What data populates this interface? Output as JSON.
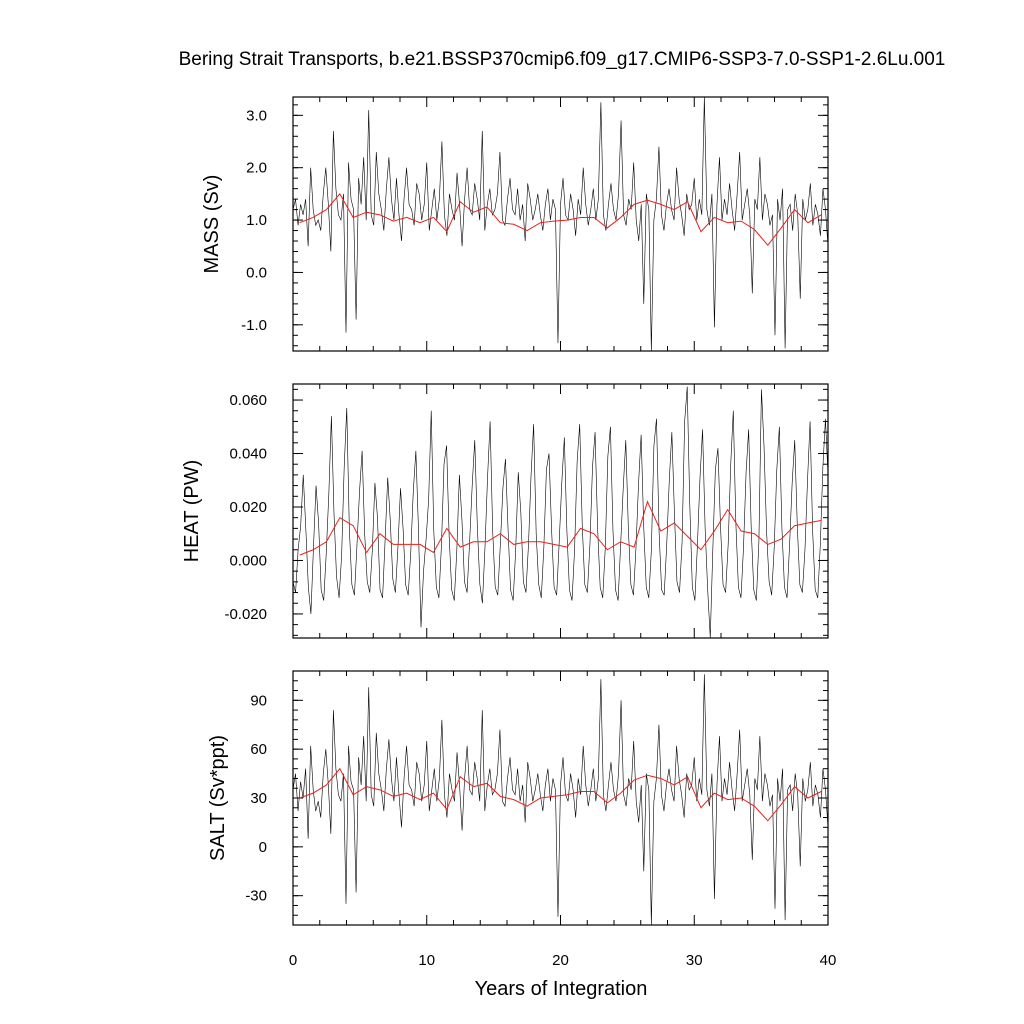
{
  "chart_data": {
    "type": "line",
    "title": "Bering Strait Transports, b.e21.BSSP370cmip6.f09_g17.CMIP6-SSP3-7.0-SSP1-2.6Lu.001",
    "xlabel": "Years of Integration",
    "xlim": [
      0,
      40
    ],
    "x_ticks": [
      0,
      10,
      20,
      30,
      40
    ],
    "x_tick_labels": [
      "0",
      "10",
      "20",
      "30",
      "40"
    ],
    "colors": {
      "monthly": "#000000",
      "annual_mean": "#e8201b"
    },
    "panels": [
      {
        "ylabel": "MASS (Sv)",
        "ylim": [
          -1.5,
          3.35
        ],
        "y_ticks": [
          -1.0,
          0.0,
          1.0,
          2.0,
          3.0
        ],
        "y_tick_labels": [
          "-1.0",
          "0.0",
          "1.0",
          "2.0",
          "3.0"
        ],
        "series": [
          {
            "values": [
              1.2,
              1.4,
              0.9,
              1.3,
              1.1,
              1.4,
              0.5,
              2.0,
              1.2,
              0.9,
              1.0,
              0.8,
              1.5,
              2.0,
              1.3,
              0.4,
              2.7,
              1.6,
              1.1,
              1.0,
              1.5,
              -1.15,
              2.1,
              1.4,
              1.2,
              -0.9,
              1.8,
              1.3,
              2.2,
              1.0,
              3.1,
              1.1,
              0.9,
              2.3,
              1.5,
              1.2,
              0.8,
              1.6,
              2.2,
              1.4,
              1.0,
              1.8,
              1.1,
              0.6,
              1.4,
              2.0,
              1.3,
              1.2,
              0.9,
              1.7,
              1.5,
              1.0,
              1.3,
              2.1,
              0.8,
              1.2,
              1.6,
              1.0,
              1.4,
              2.5,
              1.1,
              0.7,
              1.5,
              1.2,
              1.0,
              1.9,
              1.3,
              0.5,
              1.4,
              2.0,
              1.2,
              1.1,
              1.7,
              1.4,
              1.0,
              2.7,
              0.8,
              1.3,
              1.6,
              1.1,
              1.2,
              1.5,
              2.3,
              1.0,
              0.9,
              1.4,
              1.8,
              1.2,
              1.1,
              1.6,
              1.0,
              1.3,
              0.6,
              1.7,
              1.4,
              1.0,
              1.2,
              1.5,
              1.1,
              0.8,
              1.3,
              1.6,
              1.0,
              1.4,
              1.2,
              -1.35,
              1.3,
              1.8,
              1.1,
              1.0,
              1.5,
              1.2,
              0.7,
              1.4,
              1.1,
              2.0,
              1.3,
              0.9,
              1.2,
              1.6,
              1.0,
              1.4,
              3.25,
              1.1,
              0.8,
              1.3,
              1.7,
              1.2,
              1.0,
              1.5,
              2.9,
              1.1,
              0.9,
              1.4,
              1.2,
              2.1,
              1.0,
              0.6,
              1.3,
              -0.6,
              1.5,
              1.2,
              -1.5,
              1.0,
              1.4,
              2.4,
              1.1,
              0.8,
              1.3,
              1.6,
              1.2,
              1.0,
              2.0,
              1.4,
              1.1,
              0.7,
              1.5,
              1.2,
              1.3,
              1.8,
              1.0,
              1.4,
              1.1,
              3.35,
              1.2,
              0.9,
              1.5,
              -1.05,
              1.3,
              2.2,
              1.0,
              1.4,
              1.1,
              1.7,
              1.2,
              0.8,
              1.5,
              2.3,
              1.0,
              1.3,
              1.6,
              1.1,
              -0.4,
              1.4,
              1.2,
              2.2,
              1.0,
              1.5,
              1.3,
              0.9,
              1.1,
              -1.2,
              1.4,
              1.0,
              1.6,
              -1.45,
              1.2,
              1.3,
              0.8,
              1.5,
              1.1,
              -0.5,
              1.4,
              1.0,
              1.2,
              1.7,
              0.9,
              1.3,
              1.1,
              0.7,
              1.6,
              1.2,
              0.5
            ]
          },
          {
            "values": [
              0.95,
              1.05,
              1.2,
              1.5,
              1.05,
              1.15,
              1.1,
              0.98,
              1.05,
              0.95,
              1.05,
              0.78,
              1.35,
              1.15,
              1.25,
              0.95,
              0.92,
              0.8,
              0.95,
              0.98,
              1.0,
              1.05,
              1.05,
              0.85,
              1.05,
              1.3,
              1.38,
              1.3,
              1.2,
              1.35,
              0.78,
              1.05,
              0.95,
              0.98,
              0.82,
              0.52,
              0.85,
              1.2,
              0.95,
              1.1
            ]
          }
        ]
      },
      {
        "ylabel": "HEAT (PW)",
        "ylim": [
          -0.029,
          0.066
        ],
        "y_ticks": [
          -0.02,
          0.0,
          0.02,
          0.04,
          0.06
        ],
        "y_tick_labels": [
          "-0.020",
          "0.000",
          "0.020",
          "0.040",
          "0.060"
        ],
        "series": [
          {
            "values": [
              -0.008,
              -0.012,
              0.004,
              0.013,
              0.032,
              0.012,
              -0.01,
              -0.02,
              0.005,
              0.028,
              0.014,
              -0.011,
              -0.015,
              0.003,
              0.025,
              0.054,
              0.018,
              -0.006,
              -0.014,
              0.002,
              0.035,
              0.057,
              0.012,
              -0.009,
              -0.013,
              0.006,
              0.026,
              0.041,
              0.01,
              -0.008,
              -0.012,
              0.004,
              0.029,
              0.016,
              -0.011,
              -0.014,
              0.008,
              0.031,
              0.015,
              -0.007,
              -0.012,
              0.005,
              0.027,
              0.012,
              -0.009,
              -0.013,
              0.003,
              0.026,
              0.041,
              0.012,
              -0.025,
              -0.004,
              0.008,
              0.023,
              0.056,
              0.011,
              -0.01,
              -0.014,
              0.006,
              0.036,
              0.043,
              0.009,
              -0.011,
              -0.015,
              0.004,
              0.032,
              0.015,
              -0.008,
              -0.012,
              0.007,
              0.028,
              0.045,
              0.013,
              -0.009,
              -0.016,
              0.005,
              0.031,
              0.052,
              0.011,
              -0.01,
              -0.013,
              0.006,
              0.027,
              0.038,
              0.012,
              -0.011,
              -0.015,
              0.004,
              0.033,
              0.018,
              -0.008,
              -0.012,
              0.006,
              0.032,
              0.051,
              0.01,
              -0.009,
              -0.014,
              0.005,
              0.034,
              0.04,
              0.012,
              -0.01,
              -0.013,
              0.007,
              0.029,
              0.046,
              0.011,
              -0.011,
              -0.015,
              0.004,
              0.037,
              0.051,
              0.013,
              -0.009,
              -0.012,
              0.006,
              0.035,
              0.048,
              0.012,
              -0.01,
              -0.014,
              0.005,
              0.039,
              0.05,
              0.011,
              -0.011,
              -0.015,
              0.006,
              0.027,
              0.045,
              0.012,
              -0.009,
              -0.013,
              0.005,
              0.029,
              0.047,
              0.013,
              -0.01,
              -0.014,
              0.004,
              0.043,
              0.053,
              0.011,
              -0.011,
              -0.013,
              0.006,
              0.03,
              0.048,
              0.018,
              -0.008,
              -0.012,
              0.007,
              0.052,
              0.065,
              0.021,
              -0.01,
              -0.015,
              0.006,
              0.031,
              0.049,
              0.012,
              -0.011,
              -0.029,
              0.004,
              0.034,
              0.042,
              0.013,
              -0.009,
              -0.012,
              0.006,
              0.036,
              0.056,
              0.014,
              -0.01,
              -0.014,
              0.005,
              0.033,
              0.049,
              0.012,
              -0.011,
              -0.015,
              0.007,
              0.064,
              0.043,
              0.011,
              -0.008,
              -0.013,
              0.005,
              0.034,
              0.05,
              0.012,
              -0.01,
              -0.014,
              0.006,
              0.029,
              0.045,
              0.013,
              -0.009,
              -0.012,
              0.004,
              0.03,
              0.052,
              0.011,
              -0.011,
              -0.014,
              0.006,
              0.035,
              0.053,
              0.032
            ]
          },
          {
            "values": [
              0.002,
              0.004,
              0.007,
              0.016,
              0.013,
              0.003,
              0.01,
              0.006,
              0.006,
              0.006,
              0.003,
              0.012,
              0.005,
              0.007,
              0.007,
              0.01,
              0.006,
              0.007,
              0.007,
              0.006,
              0.005,
              0.012,
              0.01,
              0.004,
              0.007,
              0.005,
              0.022,
              0.011,
              0.014,
              0.009,
              0.004,
              0.011,
              0.019,
              0.011,
              0.01,
              0.006,
              0.008,
              0.013,
              0.014,
              0.015
            ]
          }
        ]
      },
      {
        "ylabel": "SALT (Sv*ppt)",
        "ylim": [
          -48,
          108
        ],
        "y_ticks": [
          -30,
          0,
          30,
          60,
          90
        ],
        "y_tick_labels": [
          "-30",
          "0",
          "30",
          "60",
          "90"
        ],
        "series": [
          {
            "values": [
              35,
              45,
              22,
              40,
              30,
              48,
              5,
              62,
              35,
              22,
              28,
              18,
              45,
              60,
              38,
              8,
              84,
              48,
              32,
              28,
              45,
              -35,
              62,
              40,
              35,
              -28,
              55,
              38,
              68,
              28,
              98,
              32,
              25,
              70,
              45,
              35,
              22,
              48,
              66,
              42,
              28,
              55,
              32,
              12,
              42,
              62,
              38,
              35,
              25,
              52,
              45,
              28,
              38,
              65,
              22,
              35,
              48,
              28,
              42,
              78,
              32,
              18,
              45,
              35,
              28,
              58,
              38,
              10,
              42,
              62,
              35,
              32,
              52,
              42,
              28,
              84,
              22,
              38,
              48,
              32,
              35,
              45,
              72,
              28,
              25,
              42,
              55,
              35,
              32,
              48,
              28,
              38,
              15,
              52,
              42,
              28,
              35,
              45,
              32,
              22,
              38,
              48,
              28,
              42,
              35,
              -43,
              38,
              55,
              32,
              28,
              45,
              35,
              18,
              42,
              32,
              62,
              38,
              25,
              35,
              48,
              28,
              42,
              103,
              32,
              22,
              38,
              52,
              35,
              28,
              45,
              90,
              32,
              25,
              42,
              35,
              65,
              28,
              15,
              38,
              -15,
              45,
              35,
              -48,
              28,
              42,
              75,
              32,
              22,
              38,
              48,
              35,
              28,
              62,
              42,
              32,
              18,
              45,
              35,
              38,
              55,
              28,
              42,
              32,
              106,
              35,
              25,
              45,
              -32,
              38,
              68,
              28,
              42,
              32,
              52,
              35,
              22,
              45,
              72,
              28,
              38,
              48,
              32,
              -8,
              42,
              35,
              68,
              28,
              45,
              38,
              25,
              32,
              -38,
              42,
              28,
              48,
              -45,
              35,
              38,
              22,
              45,
              32,
              -12,
              42,
              28,
              35,
              52,
              25,
              38,
              32,
              18,
              48,
              35,
              12
            ]
          },
          {
            "values": [
              30,
              33,
              38,
              48,
              32,
              37,
              35,
              31,
              33,
              29,
              33,
              23,
              43,
              37,
              39,
              31,
              29,
              25,
              30,
              31,
              32,
              34,
              34,
              27,
              33,
              41,
              44,
              42,
              38,
              43,
              24,
              33,
              29,
              30,
              25,
              16,
              26,
              37,
              30,
              34
            ]
          }
        ]
      }
    ]
  }
}
